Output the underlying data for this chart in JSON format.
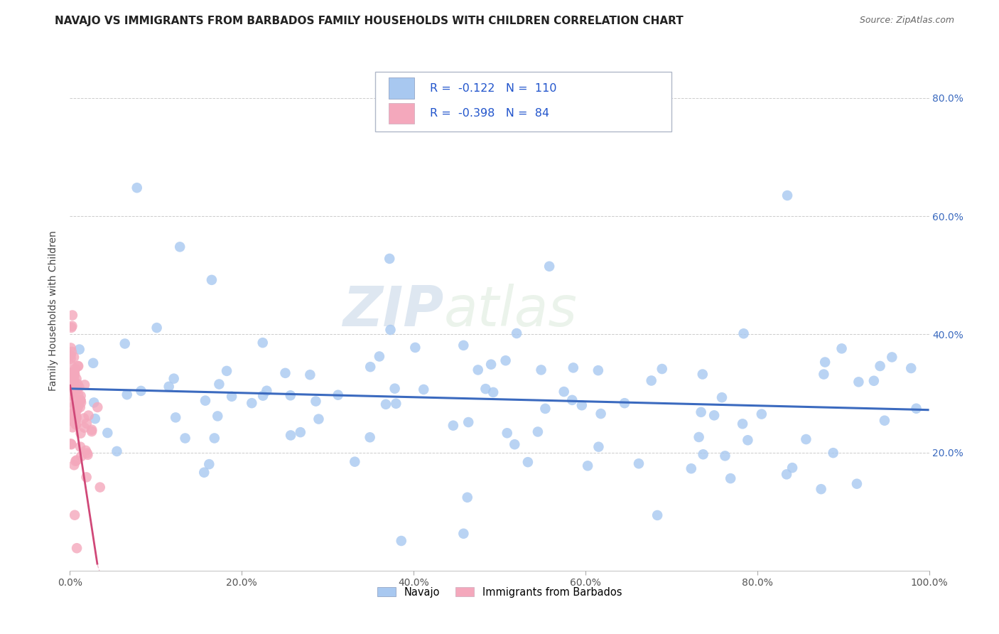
{
  "title": "NAVAJO VS IMMIGRANTS FROM BARBADOS FAMILY HOUSEHOLDS WITH CHILDREN CORRELATION CHART",
  "source": "Source: ZipAtlas.com",
  "ylabel": "Family Households with Children",
  "navajo_R": -0.122,
  "navajo_N": 110,
  "barbados_R": -0.398,
  "barbados_N": 84,
  "navajo_color": "#a8c8f0",
  "barbados_color": "#f4a8bc",
  "navajo_line_color": "#3b6abf",
  "barbados_line_color": "#d04878",
  "xlim": [
    0.0,
    1.0
  ],
  "ylim": [
    0.0,
    0.88
  ],
  "xticks": [
    0.0,
    0.2,
    0.4,
    0.6,
    0.8,
    1.0
  ],
  "yticks": [
    0.2,
    0.4,
    0.6,
    0.8
  ],
  "xticklabels": [
    "0.0%",
    "20.0%",
    "40.0%",
    "60.0%",
    "80.0%",
    "100.0%"
  ],
  "right_yticklabels": [
    "20.0%",
    "40.0%",
    "60.0%",
    "80.0%"
  ],
  "legend_labels": [
    "Navajo",
    "Immigrants from Barbados"
  ],
  "legend_colors": [
    "#a8c8f0",
    "#f4a8bc"
  ],
  "title_fontsize": 11,
  "axis_label_fontsize": 10,
  "tick_fontsize": 10,
  "right_tick_color": "#3b6abf",
  "bottom_tick_color": "#555555"
}
